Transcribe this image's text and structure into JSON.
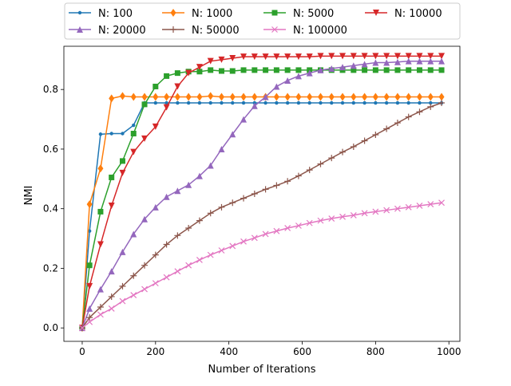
{
  "chart_data": {
    "type": "line",
    "title": "",
    "xlabel": "Number of Iterations",
    "ylabel": "NMI",
    "xlim": [
      -50,
      1030
    ],
    "ylim": [
      -0.045,
      0.945
    ],
    "xticks": [
      0,
      200,
      400,
      600,
      800,
      1000
    ],
    "xtick_labels": [
      "0",
      "200",
      "400",
      "600",
      "800",
      "1000"
    ],
    "yticks": [
      0.0,
      0.2,
      0.4,
      0.6,
      0.8
    ],
    "ytick_labels": [
      "0.0",
      "0.2",
      "0.4",
      "0.6",
      "0.8"
    ],
    "grid": false,
    "legend_position": "top-center, above plot",
    "x": [
      0,
      20,
      50,
      80,
      110,
      140,
      170,
      200,
      230,
      260,
      290,
      320,
      350,
      380,
      410,
      440,
      470,
      500,
      530,
      560,
      590,
      620,
      650,
      680,
      710,
      740,
      770,
      800,
      830,
      860,
      890,
      920,
      950,
      980
    ],
    "series": [
      {
        "name": "N: 100",
        "color": "#1f77b4",
        "marker": "point",
        "values": [
          0.0,
          0.325,
          0.65,
          0.652,
          0.652,
          0.68,
          0.755,
          0.755,
          0.755,
          0.755,
          0.755,
          0.755,
          0.755,
          0.755,
          0.755,
          0.755,
          0.755,
          0.755,
          0.755,
          0.755,
          0.755,
          0.755,
          0.755,
          0.755,
          0.755,
          0.755,
          0.755,
          0.755,
          0.755,
          0.755,
          0.755,
          0.755,
          0.755,
          0.755
        ]
      },
      {
        "name": "N: 1000",
        "color": "#ff7f0e",
        "marker": "diamond",
        "values": [
          0.0,
          0.415,
          0.535,
          0.77,
          0.778,
          0.775,
          0.775,
          0.775,
          0.775,
          0.775,
          0.775,
          0.775,
          0.778,
          0.775,
          0.775,
          0.775,
          0.775,
          0.775,
          0.775,
          0.775,
          0.775,
          0.775,
          0.775,
          0.775,
          0.775,
          0.775,
          0.775,
          0.775,
          0.775,
          0.775,
          0.775,
          0.775,
          0.775,
          0.775
        ]
      },
      {
        "name": "N: 5000",
        "color": "#2ca02c",
        "marker": "square",
        "values": [
          0.0,
          0.21,
          0.39,
          0.505,
          0.56,
          0.652,
          0.75,
          0.81,
          0.845,
          0.855,
          0.86,
          0.86,
          0.865,
          0.862,
          0.862,
          0.865,
          0.865,
          0.865,
          0.865,
          0.865,
          0.865,
          0.865,
          0.865,
          0.865,
          0.865,
          0.865,
          0.865,
          0.865,
          0.865,
          0.865,
          0.865,
          0.865,
          0.865,
          0.865
        ]
      },
      {
        "name": "N: 10000",
        "color": "#d62728",
        "marker": "triangle-down",
        "values": [
          0.0,
          0.14,
          0.28,
          0.41,
          0.52,
          0.59,
          0.635,
          0.675,
          0.74,
          0.81,
          0.855,
          0.875,
          0.895,
          0.9,
          0.905,
          0.91,
          0.91,
          0.91,
          0.91,
          0.91,
          0.91,
          0.91,
          0.912,
          0.912,
          0.912,
          0.912,
          0.912,
          0.912,
          0.912,
          0.912,
          0.912,
          0.912,
          0.912,
          0.912
        ]
      },
      {
        "name": "N: 20000",
        "color": "#9467bd",
        "marker": "triangle-up",
        "values": [
          0.0,
          0.065,
          0.13,
          0.19,
          0.255,
          0.315,
          0.365,
          0.405,
          0.44,
          0.46,
          0.48,
          0.51,
          0.545,
          0.6,
          0.65,
          0.7,
          0.745,
          0.775,
          0.81,
          0.83,
          0.845,
          0.855,
          0.865,
          0.87,
          0.875,
          0.88,
          0.885,
          0.89,
          0.89,
          0.892,
          0.895,
          0.895,
          0.895,
          0.895
        ]
      },
      {
        "name": "N: 50000",
        "color": "#8c564b",
        "marker": "plus",
        "values": [
          0.0,
          0.035,
          0.07,
          0.105,
          0.14,
          0.175,
          0.21,
          0.245,
          0.28,
          0.31,
          0.335,
          0.36,
          0.385,
          0.405,
          0.42,
          0.435,
          0.45,
          0.465,
          0.478,
          0.492,
          0.51,
          0.53,
          0.55,
          0.57,
          0.59,
          0.608,
          0.628,
          0.648,
          0.668,
          0.688,
          0.708,
          0.725,
          0.742,
          0.755
        ]
      },
      {
        "name": "N: 100000",
        "color": "#e377c2",
        "marker": "x",
        "values": [
          0.0,
          0.02,
          0.045,
          0.065,
          0.09,
          0.11,
          0.13,
          0.15,
          0.17,
          0.19,
          0.21,
          0.228,
          0.245,
          0.26,
          0.275,
          0.29,
          0.302,
          0.315,
          0.325,
          0.335,
          0.343,
          0.352,
          0.36,
          0.367,
          0.373,
          0.378,
          0.385,
          0.39,
          0.395,
          0.4,
          0.405,
          0.41,
          0.415,
          0.42
        ]
      }
    ]
  }
}
